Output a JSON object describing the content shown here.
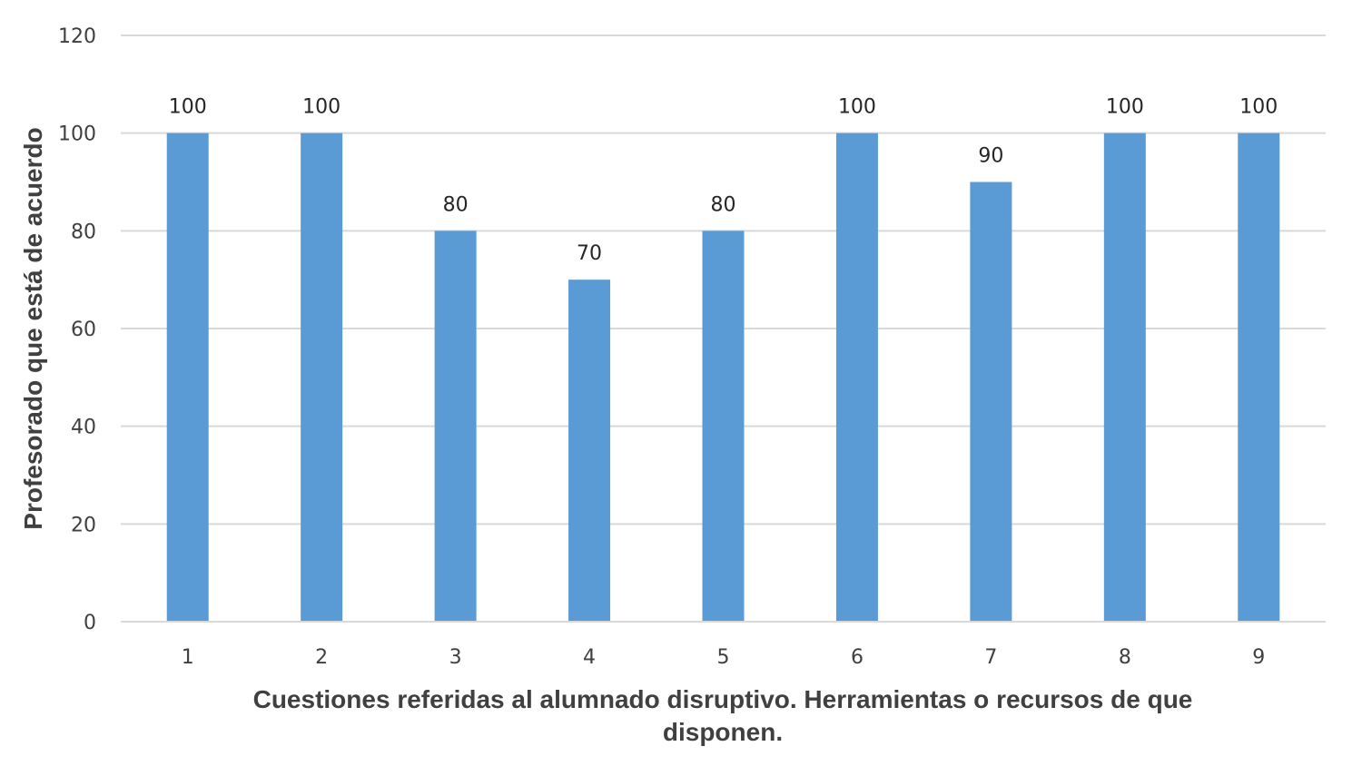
{
  "chart_data": {
    "type": "bar",
    "title": "",
    "categories": [
      "1",
      "2",
      "3",
      "4",
      "5",
      "6",
      "7",
      "8",
      "9"
    ],
    "values": [
      100,
      100,
      80,
      70,
      80,
      100,
      90,
      100,
      100
    ],
    "data_labels": [
      "100",
      "100",
      "80",
      "70",
      "80",
      "100",
      "90",
      "100",
      "100"
    ],
    "xlabel_lines": [
      "Cuestiones referidas al alumnado disruptivo. Herramientas o recursos de que",
      "disponen."
    ],
    "xlabel": "Cuestiones referidas al alumnado disruptivo. Herramientas o recursos de que disponen.",
    "ylabel": "Profesorado que está de acuerdo",
    "ylim": [
      0,
      120
    ],
    "yticks": [
      0,
      20,
      40,
      60,
      80,
      100,
      120
    ],
    "ytick_labels": [
      "0",
      "20",
      "40",
      "60",
      "80",
      "100",
      "120"
    ],
    "grid": true,
    "legend": null,
    "colors": {
      "bar": "#5b9bd5",
      "grid": "#d9d9d9",
      "text": "#404040"
    }
  }
}
